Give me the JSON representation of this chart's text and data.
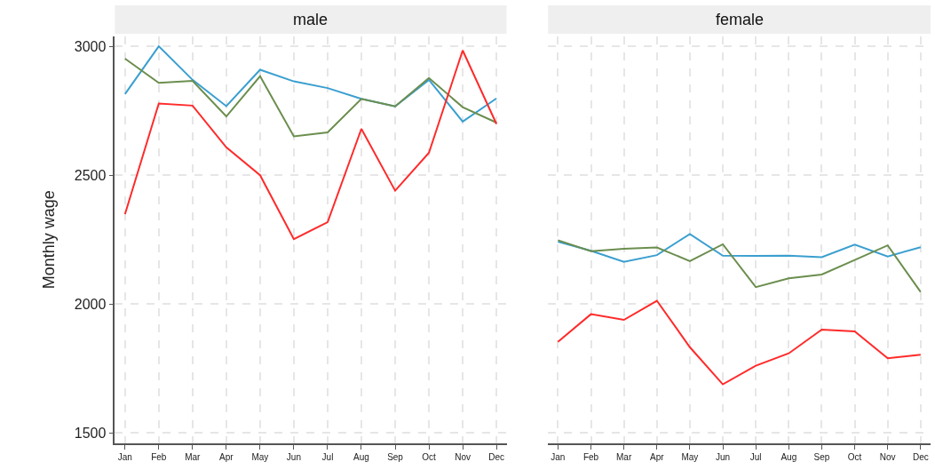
{
  "chart_data": [
    {
      "type": "line",
      "title": "male",
      "ylabel": "Monthly wage",
      "categories": [
        "Jan",
        "Feb",
        "Mar",
        "Apr",
        "May",
        "Jun",
        "Jul",
        "Aug",
        "Sep",
        "Oct",
        "Nov",
        "Dec"
      ],
      "ylim": [
        1460,
        3040
      ],
      "yticks": [
        1500,
        2000,
        2500,
        3000
      ],
      "grid": true,
      "marker": "none",
      "line_style": "solid",
      "series": [
        {
          "color": "#3a9fd0",
          "values": [
            2815,
            3000,
            2870,
            2768,
            2909,
            2864,
            2838,
            2796,
            2767,
            2870,
            2708,
            2798
          ]
        },
        {
          "color": "#6b8e4e",
          "values": [
            2952,
            2858,
            2866,
            2728,
            2884,
            2651,
            2666,
            2796,
            2767,
            2877,
            2764,
            2704
          ]
        },
        {
          "color": "#ff2a2a",
          "values": [
            2349,
            2778,
            2770,
            2608,
            2500,
            2252,
            2318,
            2680,
            2440,
            2587,
            2984,
            2699
          ]
        }
      ]
    },
    {
      "type": "line",
      "title": "female",
      "categories": [
        "Jan",
        "Feb",
        "Mar",
        "Apr",
        "May",
        "Jun",
        "Jul",
        "Aug",
        "Sep",
        "Oct",
        "Nov",
        "Dec"
      ],
      "ylim": [
        1460,
        3040
      ],
      "yticks": [
        1500,
        2000,
        2500,
        3000
      ],
      "tick_labels": "x",
      "grid": true,
      "marker": "none",
      "line_style": "solid",
      "series": [
        {
          "color": "#3a9fd0",
          "values": [
            2242,
            2207,
            2164,
            2190,
            2272,
            2188,
            2187,
            2188,
            2182,
            2231,
            2185,
            2221
          ]
        },
        {
          "color": "#6b8e4e",
          "values": [
            2248,
            2205,
            2215,
            2220,
            2167,
            2232,
            2066,
            2100,
            2115,
            2171,
            2228,
            2047
          ]
        },
        {
          "color": "#ff2a2a",
          "values": [
            1854,
            1961,
            1939,
            2013,
            1833,
            1689,
            1761,
            1809,
            1901,
            1894,
            1790,
            1804
          ]
        }
      ]
    }
  ]
}
